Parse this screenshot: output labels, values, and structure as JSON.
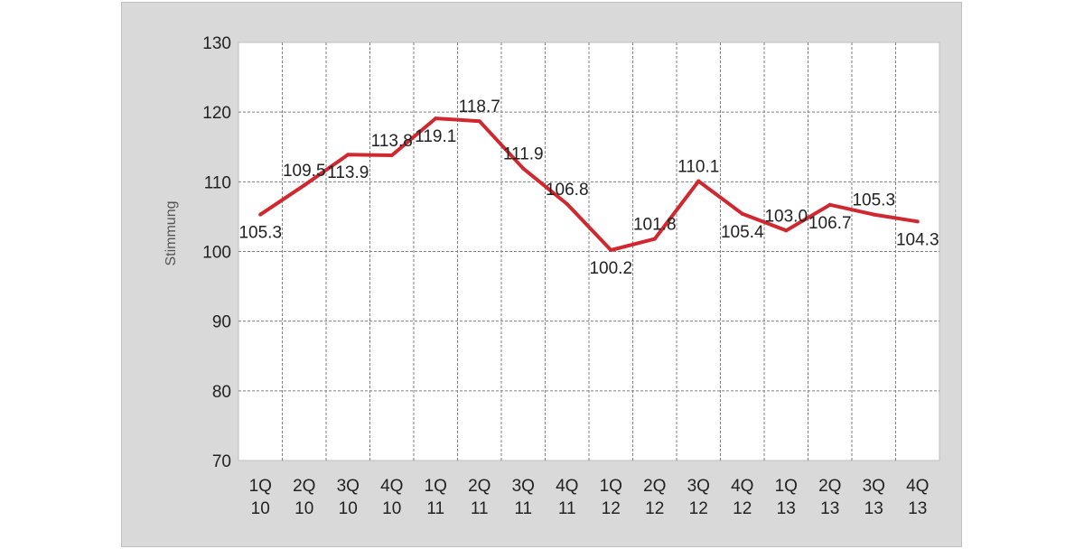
{
  "chart_data": {
    "type": "line",
    "ylabel": "Stimmung",
    "xlabel": "",
    "ylim": [
      70,
      130
    ],
    "yticks": [
      70,
      80,
      90,
      100,
      110,
      120,
      130
    ],
    "grid": true,
    "categories": [
      [
        "1Q",
        "10"
      ],
      [
        "2Q",
        "10"
      ],
      [
        "3Q",
        "10"
      ],
      [
        "4Q",
        "10"
      ],
      [
        "1Q",
        "11"
      ],
      [
        "2Q",
        "11"
      ],
      [
        "3Q",
        "11"
      ],
      [
        "4Q",
        "11"
      ],
      [
        "1Q",
        "12"
      ],
      [
        "2Q",
        "12"
      ],
      [
        "3Q",
        "12"
      ],
      [
        "4Q",
        "12"
      ],
      [
        "1Q",
        "13"
      ],
      [
        "2Q",
        "13"
      ],
      [
        "3Q",
        "13"
      ],
      [
        "4Q",
        "13"
      ]
    ],
    "series": [
      {
        "color": "#d0282e",
        "values": [
          105.3,
          109.5,
          113.9,
          113.8,
          119.1,
          118.7,
          111.9,
          106.8,
          100.2,
          101.8,
          110.1,
          105.4,
          103.0,
          106.7,
          105.3,
          104.3
        ],
        "labels": [
          "105.3",
          "109.5",
          "113.9",
          "113.8",
          "119.1",
          "118.7",
          "111.9",
          "106.8",
          "100.2",
          "101.8",
          "110.1",
          "105.4",
          "103.0",
          "106.7",
          "105.3",
          "104.3"
        ],
        "label_position": [
          "below",
          "above",
          "below",
          "above",
          "below",
          "above",
          "above",
          "above",
          "below",
          "above",
          "above",
          "below",
          "above",
          "below",
          "above",
          "below"
        ]
      }
    ]
  }
}
